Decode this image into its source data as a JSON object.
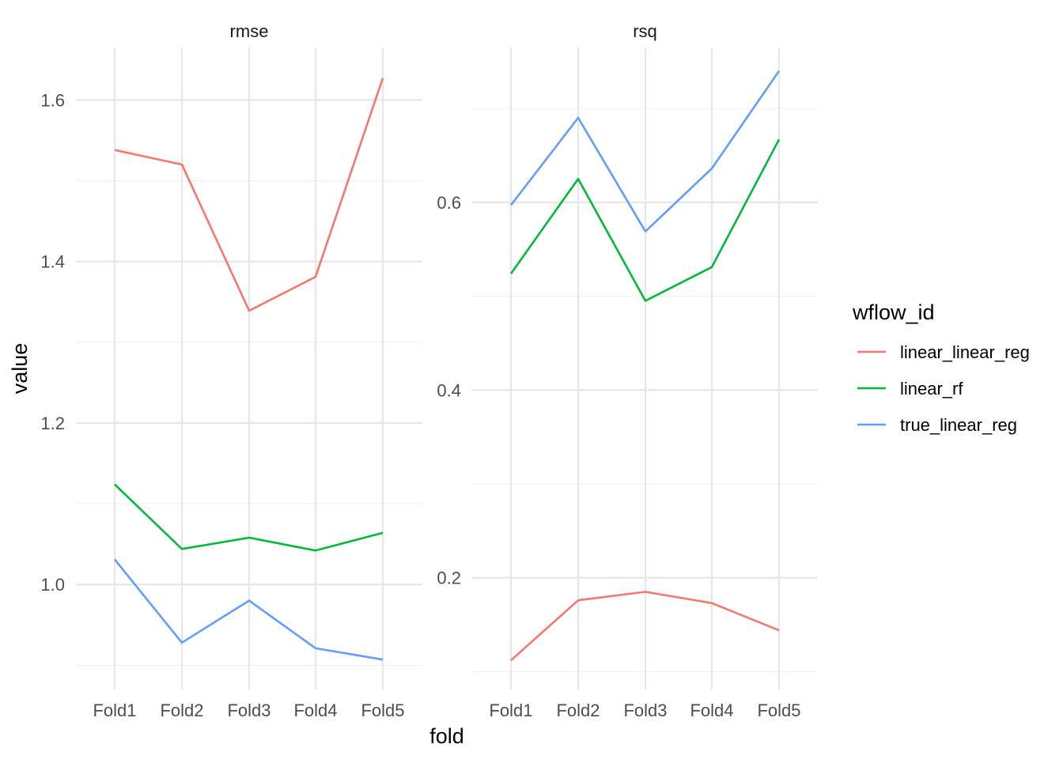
{
  "chart_data": {
    "type": "line",
    "xlabel": "fold",
    "ylabel": "value",
    "legend": {
      "title": "wflow_id",
      "placement": "right",
      "entries": [
        "linear_linear_reg",
        "linear_rf",
        "true_linear_reg"
      ]
    },
    "grid": true,
    "colors": {
      "linear_linear_reg": "#F8766D",
      "linear_rf": "#00BA38",
      "true_linear_reg": "#619CFF"
    },
    "categories": [
      "Fold1",
      "Fold2",
      "Fold3",
      "Fold4",
      "Fold5"
    ],
    "panels": [
      {
        "title": "rmse",
        "ylim": [
          0.87,
          1.665
        ],
        "yticks": [
          1.0,
          1.2,
          1.4,
          1.6
        ],
        "ytick_labels": [
          "1.0",
          "1.2",
          "1.4",
          "1.6"
        ],
        "yminor": [
          0.9,
          1.1,
          1.3,
          1.5
        ],
        "series": [
          {
            "name": "linear_linear_reg",
            "values": [
              1.538,
              1.52,
              1.339,
              1.381,
              1.627
            ]
          },
          {
            "name": "linear_rf",
            "values": [
              1.124,
              1.044,
              1.058,
              1.042,
              1.064
            ]
          },
          {
            "name": "true_linear_reg",
            "values": [
              1.031,
              0.928,
              0.98,
              0.921,
              0.907
            ]
          }
        ]
      },
      {
        "title": "rsq",
        "ylim": [
          0.081,
          0.765
        ],
        "yticks": [
          0.2,
          0.4,
          0.6
        ],
        "ytick_labels": [
          "0.2",
          "0.4",
          "0.6"
        ],
        "yminor": [
          0.1,
          0.3,
          0.5,
          0.7
        ],
        "series": [
          {
            "name": "linear_linear_reg",
            "values": [
              0.112,
              0.176,
              0.185,
              0.173,
              0.144
            ]
          },
          {
            "name": "linear_rf",
            "values": [
              0.524,
              0.625,
              0.495,
              0.531,
              0.667
            ]
          },
          {
            "name": "true_linear_reg",
            "values": [
              0.597,
              0.69,
              0.569,
              0.636,
              0.74
            ]
          }
        ]
      }
    ]
  }
}
